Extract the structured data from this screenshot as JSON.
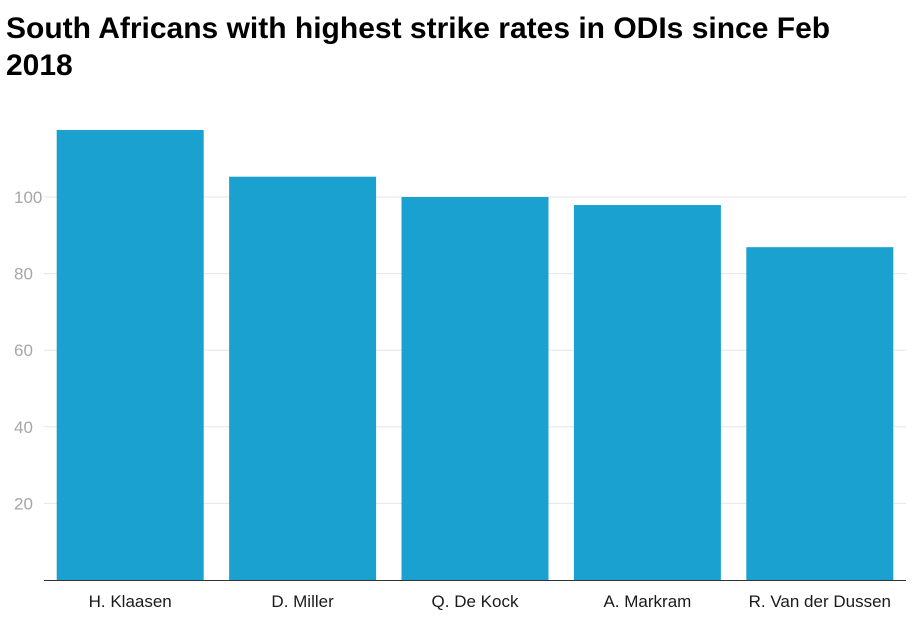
{
  "colors": {
    "bar": "#1ba1cf",
    "background": "#ffffff",
    "title": "#000000"
  },
  "chart_data": {
    "type": "bar",
    "title": "South Africans with highest strike rates in ODIs since Feb 2018",
    "xlabel": "",
    "ylabel": "",
    "categories": [
      "H. Klaasen",
      "D. Miller",
      "Q. De Kock",
      "A. Markram",
      "R. Van der Dussen"
    ],
    "values": [
      117.5,
      105.3,
      100.0,
      97.9,
      86.9
    ],
    "ylim": [
      0,
      117.5
    ],
    "yticks": [
      20,
      40,
      60,
      80,
      100
    ],
    "grid": true,
    "legend": "none"
  }
}
